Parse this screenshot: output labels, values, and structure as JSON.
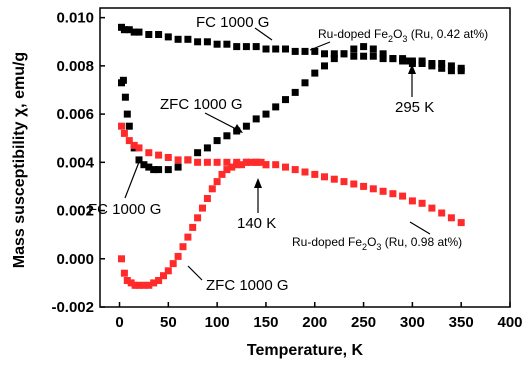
{
  "chart_data": {
    "type": "scatter",
    "xlabel": "Temperature, K",
    "ylabel": "Mass susceptibility χ, emu/g",
    "xlim": [
      -20,
      400
    ],
    "ylim": [
      -0.002,
      0.0104
    ],
    "xticks": [
      "0",
      "50",
      "100",
      "150",
      "200",
      "250",
      "300",
      "350",
      "400"
    ],
    "yticks": [
      "-0.002",
      "0.000",
      "0.002",
      "0.004",
      "0.006",
      "0.008",
      "0.010"
    ],
    "series": [
      {
        "color": "#000000",
        "x": [
          2,
          5,
          10,
          15,
          20,
          30,
          40,
          50,
          60,
          70,
          80,
          90,
          100,
          110,
          120,
          130,
          140,
          150,
          160,
          170,
          180,
          190,
          200,
          210,
          220,
          230,
          240,
          250,
          260,
          270,
          280,
          290,
          300,
          310,
          320,
          330,
          340,
          350
        ],
        "y": [
          0.0096,
          0.0095,
          0.0095,
          0.0094,
          0.0094,
          0.0093,
          0.0093,
          0.0092,
          0.0091,
          0.0091,
          0.009,
          0.009,
          0.0089,
          0.0089,
          0.0088,
          0.0088,
          0.0088,
          0.0087,
          0.0087,
          0.0087,
          0.0086,
          0.0086,
          0.0086,
          0.0085,
          0.0085,
          0.0085,
          0.0084,
          0.0084,
          0.0084,
          0.0083,
          0.0083,
          0.0083,
          0.0082,
          0.0082,
          0.0081,
          0.0081,
          0.008,
          0.0079
        ]
      },
      {
        "color": "#000000",
        "x": [
          2,
          4,
          6,
          8,
          10,
          15,
          20,
          25,
          30,
          35,
          40,
          50,
          60,
          70,
          80,
          90,
          100,
          110,
          120,
          130,
          140,
          150,
          160,
          170,
          180,
          190,
          200,
          210,
          220,
          230,
          240,
          250,
          260,
          270,
          280,
          290,
          295,
          300,
          310,
          320,
          330,
          340,
          350
        ],
        "y": [
          0.0073,
          0.0074,
          0.0067,
          0.006,
          0.0055,
          0.0046,
          0.0041,
          0.0039,
          0.0038,
          0.0037,
          0.0037,
          0.0037,
          0.0038,
          0.0041,
          0.0044,
          0.0046,
          0.0049,
          0.0051,
          0.0053,
          0.0055,
          0.0058,
          0.006,
          0.0063,
          0.0066,
          0.0069,
          0.0073,
          0.0077,
          0.008,
          0.0083,
          0.0085,
          0.0087,
          0.0088,
          0.0087,
          0.0085,
          0.0083,
          0.0082,
          0.0082,
          0.0081,
          0.0081,
          0.008,
          0.0079,
          0.0078,
          0.0078
        ]
      },
      {
        "color": "#ff2a2a",
        "x": [
          2,
          5,
          10,
          15,
          20,
          30,
          40,
          50,
          60,
          70,
          80,
          90,
          100,
          110,
          120,
          130,
          140,
          150,
          160,
          170,
          180,
          190,
          200,
          210,
          220,
          230,
          240,
          250,
          260,
          270,
          280,
          290,
          300,
          310,
          320,
          330,
          340,
          350
        ],
        "y": [
          0.0055,
          0.0052,
          0.0049,
          0.0047,
          0.0046,
          0.0044,
          0.0043,
          0.0042,
          0.0041,
          0.0041,
          0.004,
          0.004,
          0.004,
          0.004,
          0.004,
          0.004,
          0.004,
          0.0039,
          0.0039,
          0.0038,
          0.0037,
          0.0036,
          0.0035,
          0.0034,
          0.0033,
          0.0032,
          0.0031,
          0.003,
          0.0029,
          0.0028,
          0.0027,
          0.0026,
          0.0024,
          0.0023,
          0.0021,
          0.0019,
          0.0017,
          0.0015
        ]
      },
      {
        "color": "#ff2a2a",
        "x": [
          2,
          5,
          8,
          12,
          16,
          20,
          25,
          30,
          35,
          40,
          45,
          50,
          55,
          60,
          65,
          70,
          75,
          80,
          85,
          90,
          95,
          100,
          105,
          110,
          115,
          120,
          125,
          130,
          135,
          140,
          145,
          150
        ],
        "y": [
          0.0,
          -0.0006,
          -0.0009,
          -0.001,
          -0.0011,
          -0.0011,
          -0.0011,
          -0.0011,
          -0.001,
          -0.0009,
          -0.0007,
          -0.0005,
          -0.0002,
          0.0001,
          0.0005,
          0.0009,
          0.0013,
          0.0017,
          0.0021,
          0.0025,
          0.0029,
          0.0032,
          0.0035,
          0.0037,
          0.0038,
          0.0039,
          0.0039,
          0.004,
          0.004,
          0.004,
          0.004,
          0.0039
        ]
      }
    ],
    "annotations": [
      {
        "text": "FC 1000 G"
      },
      {
        "text": "Ru-doped Fe",
        "sub1": "2",
        "mid": "O",
        "sub2": "3",
        "tail": " (Ru, 0.42 at%)"
      },
      {
        "text": "ZFC 1000 G"
      },
      {
        "text": "295 K"
      },
      {
        "text": "FC 1000 G"
      },
      {
        "text": "140 K"
      },
      {
        "text": "Ru-doped Fe",
        "sub1": "2",
        "mid": "O",
        "sub2": "3",
        "tail": " (Ru, 0.98 at%)"
      },
      {
        "text": "ZFC 1000 G"
      }
    ]
  }
}
